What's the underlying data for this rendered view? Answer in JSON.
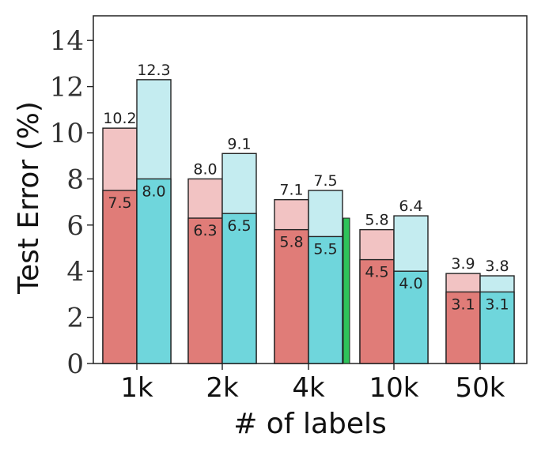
{
  "chart_data": {
    "type": "bar",
    "categories": [
      "1k",
      "2k",
      "4k",
      "10k",
      "50k"
    ],
    "xlabel": "# of labels",
    "ylabel": "Test Error (%)",
    "ylim": [
      0,
      15
    ],
    "yticks": [
      0,
      2,
      4,
      6,
      8,
      10,
      12,
      14
    ],
    "grid": false,
    "legend": "none",
    "series": [
      {
        "overall": [
          10.2,
          8.0,
          7.1,
          5.8,
          3.9
        ],
        "inner": [
          7.5,
          6.3,
          5.8,
          4.5,
          3.1
        ],
        "overall_labels": [
          "10.2",
          "8.0",
          "7.1",
          "5.8",
          "3.9"
        ],
        "inner_labels": [
          "7.5",
          "6.3",
          "5.8",
          "4.5",
          "3.1"
        ],
        "inner_color": "#e07c78",
        "outer_color": "#f2c3c3"
      },
      {
        "overall": [
          12.3,
          9.1,
          7.5,
          6.4,
          3.8
        ],
        "inner": [
          8.0,
          6.5,
          5.5,
          4.0,
          3.1
        ],
        "overall_labels": [
          "12.3",
          "9.1",
          "7.5",
          "6.4",
          "3.8"
        ],
        "inner_labels": [
          "8.0",
          "6.5",
          "5.5",
          "4.0",
          "3.1"
        ],
        "inner_color": "#6fd6dc",
        "outer_color": "#c4ecf0"
      }
    ],
    "extra_bar": {
      "category": "4k",
      "value": 6.3,
      "color": "#2ec35a"
    }
  }
}
